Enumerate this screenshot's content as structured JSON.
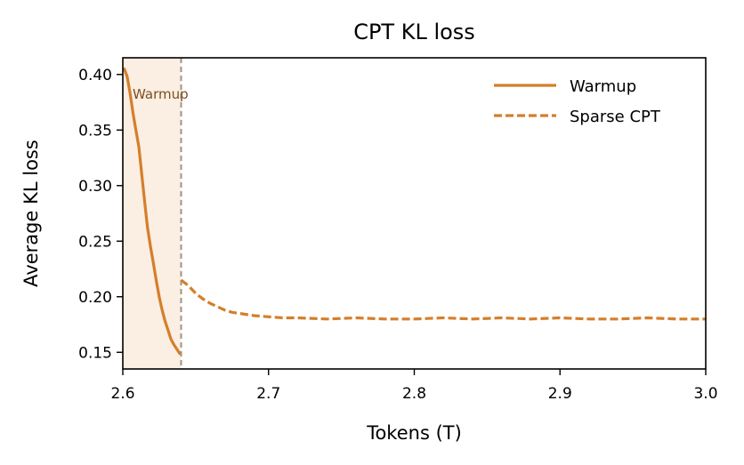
{
  "chart_data": {
    "type": "line",
    "title": "CPT KL loss",
    "xlabel": "Tokens (T)",
    "ylabel": "Average KL loss",
    "xlim": [
      2.6,
      3.0
    ],
    "ylim": [
      0.135,
      0.415
    ],
    "x_ticks": [
      2.6,
      2.7,
      2.8,
      2.9,
      3.0
    ],
    "x_tick_labels": [
      "2.6",
      "2.7",
      "2.8",
      "2.9",
      "3.0"
    ],
    "y_ticks": [
      0.15,
      0.2,
      0.25,
      0.3,
      0.35,
      0.4
    ],
    "y_tick_labels": [
      "0.15",
      "0.20",
      "0.25",
      "0.30",
      "0.35",
      "0.40"
    ],
    "legend_position": "top-right",
    "grid": false,
    "warmup_region": {
      "x_start": 2.6,
      "x_end": 2.64,
      "label": "Warmup",
      "color": "#fbeee2",
      "boundary_color": "#9e9488"
    },
    "series": [
      {
        "name": "Warmup",
        "style": "solid",
        "color": "#d47f2a",
        "x": [
          2.601,
          2.603,
          2.605,
          2.607,
          2.609,
          2.611,
          2.613,
          2.615,
          2.617,
          2.619,
          2.621,
          2.623,
          2.625,
          2.627,
          2.629,
          2.631,
          2.633,
          2.635,
          2.637,
          2.639
        ],
        "y": [
          0.405,
          0.398,
          0.383,
          0.365,
          0.35,
          0.335,
          0.31,
          0.285,
          0.262,
          0.245,
          0.23,
          0.214,
          0.2,
          0.188,
          0.178,
          0.17,
          0.162,
          0.157,
          0.153,
          0.149
        ]
      },
      {
        "name": "Sparse CPT",
        "style": "dashed",
        "color": "#d47f2a",
        "x": [
          2.64,
          2.645,
          2.65,
          2.655,
          2.66,
          2.665,
          2.67,
          2.675,
          2.68,
          2.69,
          2.7,
          2.71,
          2.72,
          2.74,
          2.76,
          2.78,
          2.8,
          2.82,
          2.84,
          2.86,
          2.88,
          2.9,
          2.92,
          2.94,
          2.96,
          2.98,
          3.0
        ],
        "y": [
          0.215,
          0.21,
          0.203,
          0.198,
          0.194,
          0.191,
          0.188,
          0.186,
          0.185,
          0.183,
          0.182,
          0.181,
          0.181,
          0.18,
          0.181,
          0.18,
          0.18,
          0.181,
          0.18,
          0.181,
          0.18,
          0.181,
          0.18,
          0.18,
          0.181,
          0.18,
          0.18
        ]
      }
    ]
  }
}
